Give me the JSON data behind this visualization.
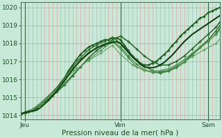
{
  "title": "",
  "xlabel": "Pression niveau de la mer( hPa )",
  "ylabel": "",
  "bg_color": "#c8e8d8",
  "grid_color_h": "#90c0a0",
  "grid_color_v": "#dda0a0",
  "ylim": [
    1013.8,
    1020.3
  ],
  "xlim": [
    0,
    50
  ],
  "xtick_positions": [
    1,
    25,
    47
  ],
  "xtick_labels": [
    "Jeu",
    "Ven",
    "Sam"
  ],
  "ytick_positions": [
    1014,
    1015,
    1016,
    1017,
    1018,
    1019,
    1020
  ],
  "vline_positions": [
    1,
    25,
    47
  ],
  "lines": [
    {
      "x": [
        0,
        1,
        2,
        3,
        4,
        5,
        6,
        7,
        8,
        9,
        10,
        11,
        12,
        13,
        14,
        15,
        16,
        17,
        18,
        19,
        20,
        21,
        22,
        23,
        24,
        25,
        26,
        27,
        28,
        29,
        30,
        31,
        32,
        33,
        34,
        35,
        36,
        37,
        38,
        39,
        40,
        41,
        42,
        43,
        44,
        45,
        46,
        47,
        48,
        49,
        50
      ],
      "y": [
        1014.1,
        1014.15,
        1014.2,
        1014.3,
        1014.4,
        1014.6,
        1014.8,
        1015.0,
        1015.2,
        1015.5,
        1015.8,
        1016.1,
        1016.5,
        1016.8,
        1017.1,
        1017.4,
        1017.6,
        1017.8,
        1017.9,
        1018.0,
        1018.1,
        1018.2,
        1018.2,
        1018.3,
        1018.3,
        1018.2,
        1017.9,
        1017.6,
        1017.3,
        1017.1,
        1016.9,
        1016.8,
        1016.8,
        1016.9,
        1017.0,
        1017.2,
        1017.4,
        1017.6,
        1017.9,
        1018.1,
        1018.4,
        1018.6,
        1018.8,
        1019.0,
        1019.2,
        1019.4,
        1019.5,
        1019.7,
        1019.8,
        1019.9,
        1020.0
      ],
      "color": "#1a5c1a",
      "lw": 1.3,
      "marker": "+"
    },
    {
      "x": [
        0,
        1,
        2,
        3,
        5,
        7,
        9,
        11,
        13,
        15,
        17,
        19,
        21,
        23,
        25,
        27,
        29,
        31,
        33,
        35,
        37,
        39,
        41,
        43,
        45,
        47,
        49,
        50
      ],
      "y": [
        1014.1,
        1014.15,
        1014.2,
        1014.3,
        1014.6,
        1014.9,
        1015.3,
        1015.7,
        1016.2,
        1016.7,
        1017.2,
        1017.6,
        1017.9,
        1018.2,
        1018.4,
        1018.1,
        1017.7,
        1017.3,
        1017.0,
        1016.8,
        1016.8,
        1017.0,
        1017.3,
        1017.7,
        1018.1,
        1018.5,
        1018.9,
        1019.2
      ],
      "color": "#246624",
      "lw": 1.1,
      "marker": "+"
    },
    {
      "x": [
        0,
        1,
        3,
        5,
        7,
        9,
        11,
        13,
        15,
        17,
        19,
        21,
        23,
        25,
        27,
        29,
        31,
        33,
        35,
        37,
        39,
        41,
        43,
        45,
        47,
        49,
        50
      ],
      "y": [
        1014.1,
        1014.2,
        1014.35,
        1014.7,
        1015.1,
        1015.55,
        1016.1,
        1016.7,
        1017.2,
        1017.65,
        1017.9,
        1018.1,
        1018.35,
        1018.0,
        1017.55,
        1017.1,
        1016.75,
        1016.5,
        1016.4,
        1016.5,
        1016.7,
        1017.0,
        1017.4,
        1017.8,
        1018.2,
        1018.7,
        1019.0
      ],
      "color": "#2d702d",
      "lw": 1.0,
      "marker": "+"
    },
    {
      "x": [
        0,
        1,
        3,
        5,
        7,
        9,
        11,
        13,
        15,
        17,
        19,
        21,
        23,
        25,
        27,
        29,
        31,
        33,
        35,
        37,
        39,
        41,
        43,
        45,
        47,
        49,
        50
      ],
      "y": [
        1014.05,
        1014.15,
        1014.3,
        1014.6,
        1015.0,
        1015.45,
        1016.0,
        1016.55,
        1017.1,
        1017.5,
        1017.75,
        1017.95,
        1018.15,
        1017.8,
        1017.3,
        1016.85,
        1016.55,
        1016.4,
        1016.35,
        1016.45,
        1016.65,
        1016.95,
        1017.35,
        1017.75,
        1018.1,
        1018.55,
        1018.85
      ],
      "color": "#3d803d",
      "lw": 0.9,
      "marker": "+"
    },
    {
      "x": [
        0,
        2,
        5,
        8,
        11,
        14,
        17,
        20,
        23,
        25,
        27,
        29,
        31,
        33,
        35,
        37,
        39,
        41,
        43,
        45,
        47,
        49,
        50
      ],
      "y": [
        1014.05,
        1014.2,
        1014.6,
        1015.1,
        1015.8,
        1016.5,
        1017.1,
        1017.6,
        1018.1,
        1017.7,
        1017.2,
        1016.7,
        1016.5,
        1016.4,
        1016.45,
        1016.6,
        1016.8,
        1017.1,
        1017.45,
        1017.8,
        1018.15,
        1018.5,
        1018.75
      ],
      "color": "#4d904d",
      "lw": 0.85,
      "marker": "+"
    },
    {
      "x": [
        0,
        2,
        5,
        8,
        11,
        14,
        17,
        20,
        23,
        25,
        28,
        31,
        34,
        37,
        40,
        43,
        46,
        49,
        50
      ],
      "y": [
        1014.05,
        1014.2,
        1014.7,
        1015.2,
        1016.0,
        1016.6,
        1017.05,
        1017.45,
        1017.9,
        1017.4,
        1016.8,
        1016.5,
        1016.45,
        1016.6,
        1016.85,
        1017.25,
        1017.65,
        1018.0,
        1018.25
      ],
      "color": "#5da05d",
      "lw": 0.8,
      "marker": "+"
    },
    {
      "x": [
        0,
        1,
        2,
        3,
        4,
        5,
        6,
        7,
        8,
        9,
        10,
        11,
        12,
        13,
        14,
        15,
        16,
        17,
        18,
        19,
        20,
        21,
        22,
        23,
        24,
        25,
        26,
        27,
        28,
        29,
        30,
        31,
        32,
        33,
        34,
        35,
        36,
        37,
        38,
        39,
        40,
        41,
        42,
        43,
        44,
        45,
        46,
        47,
        48,
        49,
        50
      ],
      "y": [
        1014.1,
        1014.15,
        1014.2,
        1014.25,
        1014.3,
        1014.45,
        1014.65,
        1014.85,
        1015.1,
        1015.35,
        1015.65,
        1015.95,
        1016.25,
        1016.55,
        1016.8,
        1017.05,
        1017.25,
        1017.45,
        1017.6,
        1017.75,
        1017.85,
        1017.95,
        1018.0,
        1018.05,
        1018.1,
        1018.0,
        1017.75,
        1017.5,
        1017.25,
        1017.05,
        1016.85,
        1016.7,
        1016.65,
        1016.65,
        1016.7,
        1016.8,
        1016.95,
        1017.15,
        1017.35,
        1017.6,
        1017.85,
        1018.1,
        1018.3,
        1018.5,
        1018.65,
        1018.8,
        1018.95,
        1019.1,
        1019.25,
        1019.4,
        1019.55
      ],
      "color": "#0f4010",
      "lw": 1.5,
      "marker": null
    }
  ]
}
